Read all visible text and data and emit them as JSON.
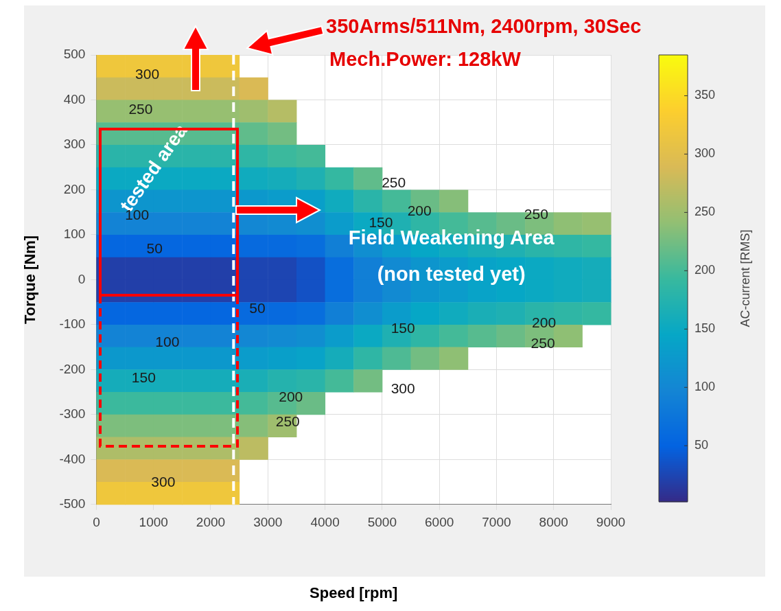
{
  "chart_data": {
    "type": "heatmap",
    "xlabel": "Speed [rpm]",
    "ylabel": "Torque [Nm]",
    "clabel": "AC-current [RMS]",
    "x": [
      250,
      750,
      1250,
      1750,
      2250,
      2750,
      3250,
      3750,
      4250,
      4750,
      5250,
      5750,
      6250,
      6750,
      7250,
      7750,
      8250,
      8750
    ],
    "cells": [
      [
        320,
        320,
        320,
        320,
        320,
        null,
        null,
        null,
        null,
        null,
        null,
        null,
        null,
        null,
        null,
        null,
        null,
        null
      ],
      [
        280,
        280,
        280,
        280,
        280,
        290,
        null,
        null,
        null,
        null,
        null,
        null,
        null,
        null,
        null,
        null,
        null,
        null
      ],
      [
        245,
        245,
        245,
        245,
        245,
        250,
        265,
        null,
        null,
        null,
        null,
        null,
        null,
        null,
        null,
        null,
        null,
        null
      ],
      [
        210,
        210,
        210,
        210,
        210,
        215,
        225,
        null,
        null,
        null,
        null,
        null,
        null,
        null,
        null,
        null,
        null,
        null
      ],
      [
        180,
        180,
        180,
        180,
        180,
        185,
        195,
        200,
        null,
        null,
        null,
        null,
        null,
        null,
        null,
        null,
        null,
        null
      ],
      [
        150,
        150,
        150,
        150,
        150,
        155,
        160,
        170,
        190,
        215,
        null,
        null,
        null,
        null,
        null,
        null,
        null,
        null
      ],
      [
        120,
        120,
        120,
        120,
        120,
        125,
        130,
        135,
        155,
        180,
        200,
        220,
        235,
        null,
        null,
        null,
        null,
        null
      ],
      [
        95,
        95,
        95,
        95,
        95,
        100,
        105,
        110,
        130,
        150,
        170,
        185,
        200,
        210,
        220,
        230,
        240,
        245
      ],
      [
        55,
        55,
        55,
        55,
        55,
        60,
        60,
        65,
        90,
        110,
        130,
        145,
        155,
        165,
        170,
        180,
        185,
        190
      ],
      [
        20,
        20,
        20,
        20,
        20,
        25,
        25,
        35,
        65,
        90,
        105,
        120,
        130,
        140,
        145,
        150,
        155,
        160
      ],
      [
        20,
        20,
        20,
        20,
        20,
        25,
        25,
        35,
        65,
        90,
        105,
        120,
        130,
        140,
        145,
        150,
        155,
        160
      ],
      [
        55,
        55,
        55,
        55,
        55,
        60,
        60,
        65,
        90,
        110,
        130,
        145,
        155,
        165,
        170,
        180,
        185,
        190
      ],
      [
        95,
        95,
        95,
        95,
        95,
        100,
        105,
        110,
        130,
        150,
        170,
        185,
        200,
        210,
        220,
        230,
        240,
        null
      ],
      [
        125,
        125,
        125,
        125,
        125,
        130,
        135,
        140,
        160,
        185,
        205,
        225,
        240,
        null,
        null,
        null,
        null,
        null
      ],
      [
        160,
        160,
        160,
        160,
        160,
        165,
        175,
        180,
        200,
        225,
        null,
        null,
        null,
        null,
        null,
        null,
        null,
        null
      ],
      [
        195,
        195,
        195,
        195,
        195,
        200,
        210,
        220,
        null,
        null,
        null,
        null,
        null,
        null,
        null,
        null,
        null,
        null
      ],
      [
        230,
        230,
        230,
        230,
        230,
        235,
        250,
        null,
        null,
        null,
        null,
        null,
        null,
        null,
        null,
        null,
        null,
        null
      ],
      [
        260,
        260,
        260,
        260,
        260,
        270,
        null,
        null,
        null,
        null,
        null,
        null,
        null,
        null,
        null,
        null,
        null,
        null
      ],
      [
        290,
        290,
        290,
        290,
        290,
        null,
        null,
        null,
        null,
        null,
        null,
        null,
        null,
        null,
        null,
        null,
        null,
        null
      ],
      [
        320,
        320,
        320,
        320,
        320,
        null,
        null,
        null,
        null,
        null,
        null,
        null,
        null,
        null,
        null,
        null,
        null,
        null
      ]
    ],
    "clim": [
      2,
      385
    ],
    "cticks": [
      50,
      100,
      150,
      200,
      250,
      300,
      350
    ],
    "xlim": [
      0,
      9000
    ],
    "xticks": [
      0,
      1000,
      2000,
      3000,
      4000,
      5000,
      6000,
      7000,
      8000,
      9000
    ],
    "ylim": [
      -500,
      500
    ],
    "yticks": [
      -500,
      -400,
      -300,
      -200,
      -100,
      0,
      100,
      200,
      300,
      400,
      500
    ],
    "grid": true,
    "ref_lines": [
      {
        "axis": "x",
        "value": 2400,
        "color": "#ffffff",
        "line_style": "dashed"
      }
    ],
    "annotations": [
      "350Arms/511Nm, 2400rpm, 30Sec",
      "Mech.Power: 128kW",
      "Field Weakening Area",
      "(non tested yet)",
      "tested area",
      "300",
      "250",
      "100",
      "50",
      "50",
      "100",
      "150",
      "300",
      "250",
      "200",
      "150",
      "250",
      "150",
      "200",
      "250",
      "200",
      "250",
      "300"
    ]
  }
}
